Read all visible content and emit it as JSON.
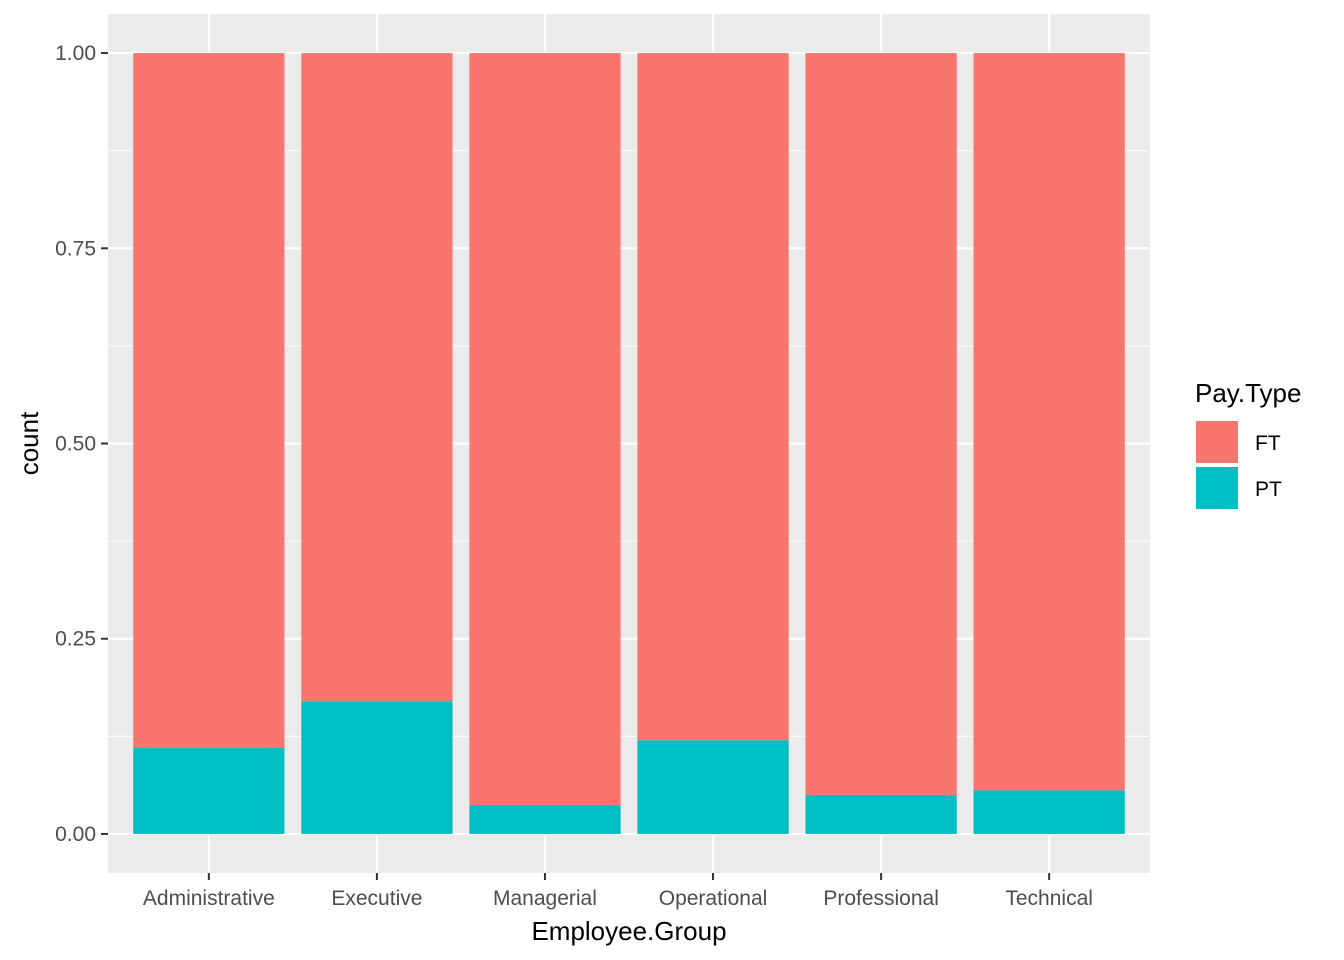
{
  "chart_data": {
    "type": "bar",
    "stacked": true,
    "categories": [
      "Administrative",
      "Executive",
      "Managerial",
      "Operational",
      "Professional",
      "Technical"
    ],
    "series": [
      {
        "name": "FT",
        "values": [
          0.89,
          0.83,
          0.963,
          0.88,
          0.95,
          0.944
        ]
      },
      {
        "name": "PT",
        "values": [
          0.11,
          0.17,
          0.037,
          0.12,
          0.05,
          0.056
        ]
      }
    ],
    "stack_order_bottom_to_top": [
      "PT",
      "FT"
    ],
    "xlabel": "Employee.Group",
    "ylabel": "count",
    "ylim": [
      -0.05,
      1.05
    ],
    "yticks": [
      0,
      0.25,
      0.5,
      0.75,
      1
    ],
    "ytick_labels": [
      "0.00",
      "0.25",
      "0.50",
      "0.75",
      "1.00"
    ],
    "grid": true,
    "legend": {
      "title": "Pay.Type",
      "placement": "right",
      "entries": [
        "FT",
        "PT"
      ]
    },
    "colors": {
      "FT": "#F8766D",
      "PT": "#00BFC4",
      "panel_background": "#EBEBEB",
      "grid": "#FFFFFF",
      "tick_text": "#4D4D4D",
      "tick_mark": "#333333"
    }
  }
}
